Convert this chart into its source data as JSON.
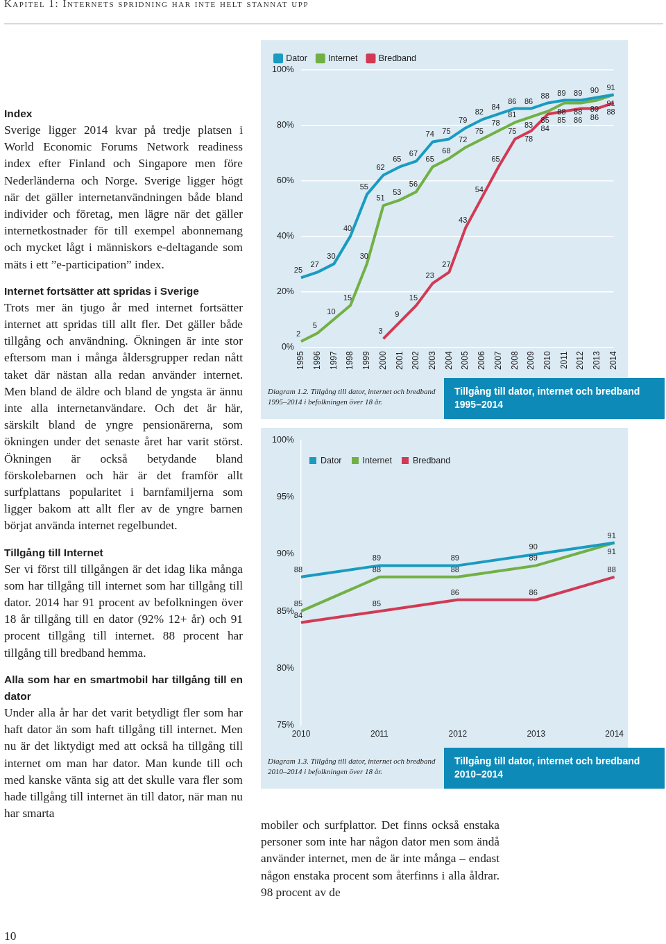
{
  "chart_data": [
    {
      "type": "line",
      "title": "Tillgång till dator, internet och bredband 1995–2014",
      "categories": [
        "1995",
        "1996",
        "1997",
        "1998",
        "1999",
        "2000",
        "2001",
        "2002",
        "2003",
        "2004",
        "2005",
        "2006",
        "2007",
        "2008",
        "2009",
        "2010",
        "2011",
        "2012",
        "2013",
        "2014"
      ],
      "series": [
        {
          "name": "Dator",
          "color": "#1a9bc0",
          "values": [
            25,
            27,
            30,
            40,
            55,
            62,
            65,
            67,
            74,
            75,
            79,
            82,
            84,
            86,
            86,
            88,
            89,
            89,
            90,
            91
          ]
        },
        {
          "name": "Internet",
          "color": "#72b045",
          "values": [
            2,
            5,
            10,
            15,
            30,
            51,
            53,
            56,
            65,
            68,
            72,
            75,
            78,
            81,
            83,
            85,
            88,
            88,
            89,
            91
          ]
        },
        {
          "name": "Bredband",
          "color": "#d13a55",
          "values": [
            null,
            null,
            null,
            null,
            null,
            3,
            9,
            15,
            23,
            27,
            43,
            54,
            65,
            75,
            78,
            84,
            85,
            86,
            86,
            88
          ]
        }
      ],
      "ylim": [
        0,
        100
      ],
      "yticks": [
        {
          "value": 0,
          "label": "0%"
        },
        {
          "value": 20,
          "label": "20%"
        },
        {
          "value": 40,
          "label": "40%"
        },
        {
          "value": 60,
          "label": "60%"
        },
        {
          "value": 80,
          "label": "80%"
        },
        {
          "value": 100,
          "label": "100%"
        }
      ],
      "grid": "y",
      "legend": "top left",
      "data_labels": true,
      "marker": "none",
      "annotations": [
        "Diagram 1.2. Tillgång till dator, internet och bredband 1995–2014 i befolkningen över 18 år."
      ]
    },
    {
      "type": "line",
      "title": "Tillgång till dator, internet och bredband 2010–2014",
      "categories": [
        "2010",
        "2011",
        "2012",
        "2013",
        "2014"
      ],
      "series": [
        {
          "name": "Dator",
          "color": "#1a9bc0",
          "values": [
            88,
            89,
            89,
            90,
            91
          ]
        },
        {
          "name": "Internet",
          "color": "#72b045",
          "values": [
            85,
            88,
            88,
            89,
            91
          ]
        },
        {
          "name": "Bredband",
          "color": "#d13a55",
          "values": [
            84,
            85,
            86,
            86,
            88
          ]
        }
      ],
      "ylim": [
        75,
        100
      ],
      "yticks": [
        {
          "value": 75,
          "label": "75%"
        },
        {
          "value": 80,
          "label": "80%"
        },
        {
          "value": 85,
          "label": "85%"
        },
        {
          "value": 90,
          "label": "90%"
        },
        {
          "value": 95,
          "label": "95%"
        },
        {
          "value": 100,
          "label": "100%"
        }
      ],
      "grid": false,
      "legend": "top left",
      "data_labels": true,
      "marker": "none",
      "annotations": [
        "Diagram 1.3. Tillgång till dator, internet och bredband 2010–2014 i befolkningen över 18 år."
      ]
    },
    {
      "type": "other",
      "title": "Kapitel 1: Internets spridning har inte helt stannat upp",
      "annotations": [
        "Index",
        "Sverige ligger 2014 kvar på tredje platsen i World Economic Forums Network readiness index efter Finland och Singapore men före Nederländerna och Norge. Sverige ligger högt när det gäller internetanvändningen både bland individer och företag, men lägre när det gäller internetkostnader för till exempel abonnemang och mycket lågt i människors e-deltagande som mäts i ett ”e-participation” index.",
        "Internet fortsätter att spridas i Sverige",
        "Trots mer än tjugo år med internet fortsätter internet att spridas till allt fler. Det gäller både tillgång och användning. Ökningen är inte stor eftersom man i många åldersgrupper redan nått taket där nästan alla redan använder internet. Men bland de äldre och bland de yngsta är ännu inte alla internetanvändare. Och det är här, särskilt bland de yngre pensionärerna, som ökningen under det senaste året har varit störst. Ökningen är också betydande bland förskolebarnen och här är det framför allt surfplattans popularitet i barnfamiljerna som ligger bakom att allt fler av de yngre barnen börjat använda internet regelbundet.",
        "Tillgång till Internet",
        "Ser vi först till tillgången är det idag lika många som har tillgång till internet som har tillgång till dator. 2014 har 91 procent av befolkningen över 18 år tillgång till en dator (92% 12+ år) och 91 procent tillgång till internet. 88 procent har tillgång till bredband hemma.",
        "Alla som har en smartmobil har tillgång till en dator",
        "Under alla år har det varit betydligt fler som har haft dator än som haft tillgång till internet. Men nu är det liktydigt med att också ha tillgång till internet om man har dator. Man kunde till och med kanske vänta sig att det skulle vara fler som hade tillgång till internet än till dator, när man nu har smarta",
        "mobiler och surfplattor. Det finns också enstaka personer som inte har någon dator men som ändå använder internet, men de är inte många – endast någon enstaka procent som återfinns i alla åldrar. 98 procent av de",
        "10"
      ]
    }
  ]
}
